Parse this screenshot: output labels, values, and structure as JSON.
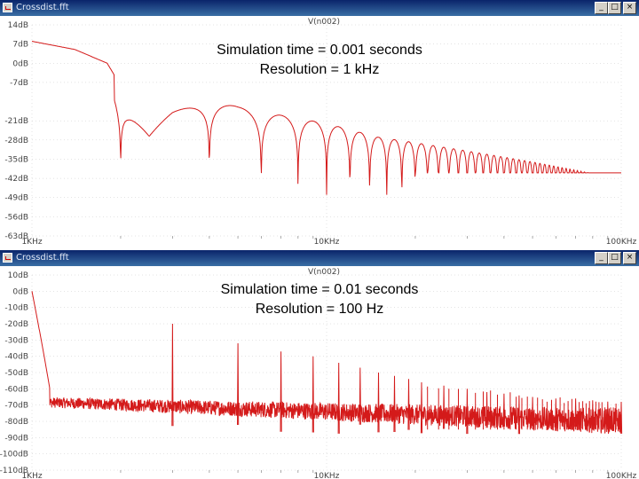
{
  "windows": [
    {
      "title": "Crossdist.fft",
      "trace_label": "V(n002)",
      "annotation_line1": "Simulation time = 0.001 seconds",
      "annotation_line2": "Resolution = 1 kHz",
      "controls": {
        "minimize": "_",
        "maximize": "□",
        "close": "×"
      }
    },
    {
      "title": "Crossdist.fft",
      "trace_label": "V(n002)",
      "annotation_line1": "Simulation time = 0.01 seconds",
      "annotation_line2": "Resolution = 100 Hz",
      "controls": {
        "minimize": "_",
        "maximize": "□",
        "close": "×"
      }
    }
  ],
  "colors": {
    "trace": "#d41a1a",
    "titlebar": "#0a246a",
    "grid": "#c8c8c8"
  },
  "chart_data": [
    {
      "type": "line",
      "title": "V(n002)",
      "xscale": "log",
      "xlim": [
        1000,
        100000
      ],
      "ylim": [
        -63,
        14
      ],
      "x_tick_labels": [
        "1KHz",
        "10KHz",
        "100KHz"
      ],
      "y_tick_labels": [
        "14dB",
        "7dB",
        "0dB",
        "-7dB",
        "-21dB",
        "-28dB",
        "-35dB",
        "-42dB",
        "-49dB",
        "-56dB",
        "-63dB"
      ],
      "y_tick_values": [
        14,
        7,
        0,
        -7,
        -21,
        -28,
        -35,
        -42,
        -49,
        -56,
        -63
      ],
      "series": [
        {
          "name": "V(n002)",
          "envelope_points": [
            [
              1000,
              8
            ],
            [
              1400,
              5
            ],
            [
              1800,
              0
            ],
            [
              2100,
              -12
            ],
            [
              2500,
              -25
            ],
            [
              3000,
              -18
            ],
            [
              4000,
              -12
            ],
            [
              5000,
              -16
            ],
            [
              7000,
              -19
            ],
            [
              10000,
              -22
            ],
            [
              15000,
              -27
            ],
            [
              20000,
              -29
            ],
            [
              30000,
              -32
            ],
            [
              50000,
              -36
            ],
            [
              70000,
              -39
            ],
            [
              100000,
              -42
            ]
          ],
          "null_frequencies_hz": [
            2000,
            4000,
            6000,
            8000,
            10000,
            12000,
            14000,
            16000,
            18000,
            20000
          ],
          "null_depth_db": -48
        }
      ]
    },
    {
      "type": "line",
      "title": "V(n002)",
      "xscale": "log",
      "xlim": [
        1000,
        100000
      ],
      "ylim": [
        -110,
        10
      ],
      "x_tick_labels": [
        "1KHz",
        "10KHz",
        "100KHz"
      ],
      "y_tick_labels": [
        "10dB",
        "0dB",
        "-10dB",
        "-20dB",
        "-30dB",
        "-40dB",
        "-50dB",
        "-60dB",
        "-70dB",
        "-80dB",
        "-90dB",
        "-100dB",
        "-110dB"
      ],
      "y_tick_values": [
        10,
        0,
        -10,
        -20,
        -30,
        -40,
        -50,
        -60,
        -70,
        -80,
        -90,
        -100,
        -110
      ],
      "series": [
        {
          "name": "V(n002)",
          "noise_floor_start_db": -68,
          "noise_floor_end_db": -80,
          "peaks": [
            [
              1000,
              0
            ],
            [
              3000,
              -20
            ],
            [
              5000,
              -32
            ],
            [
              7000,
              -37
            ],
            [
              9000,
              -40
            ],
            [
              11000,
              -44
            ],
            [
              13000,
              -47
            ],
            [
              15000,
              -50
            ],
            [
              17000,
              -52
            ],
            [
              19000,
              -54
            ],
            [
              21000,
              -56
            ],
            [
              25000,
              -58
            ],
            [
              30000,
              -60
            ],
            [
              35000,
              -62
            ],
            [
              40000,
              -63
            ],
            [
              45000,
              -64
            ],
            [
              50000,
              -65
            ],
            [
              60000,
              -66
            ],
            [
              70000,
              -66
            ],
            [
              80000,
              -67
            ],
            [
              90000,
              -68
            ],
            [
              100000,
              -68
            ]
          ]
        }
      ]
    }
  ]
}
